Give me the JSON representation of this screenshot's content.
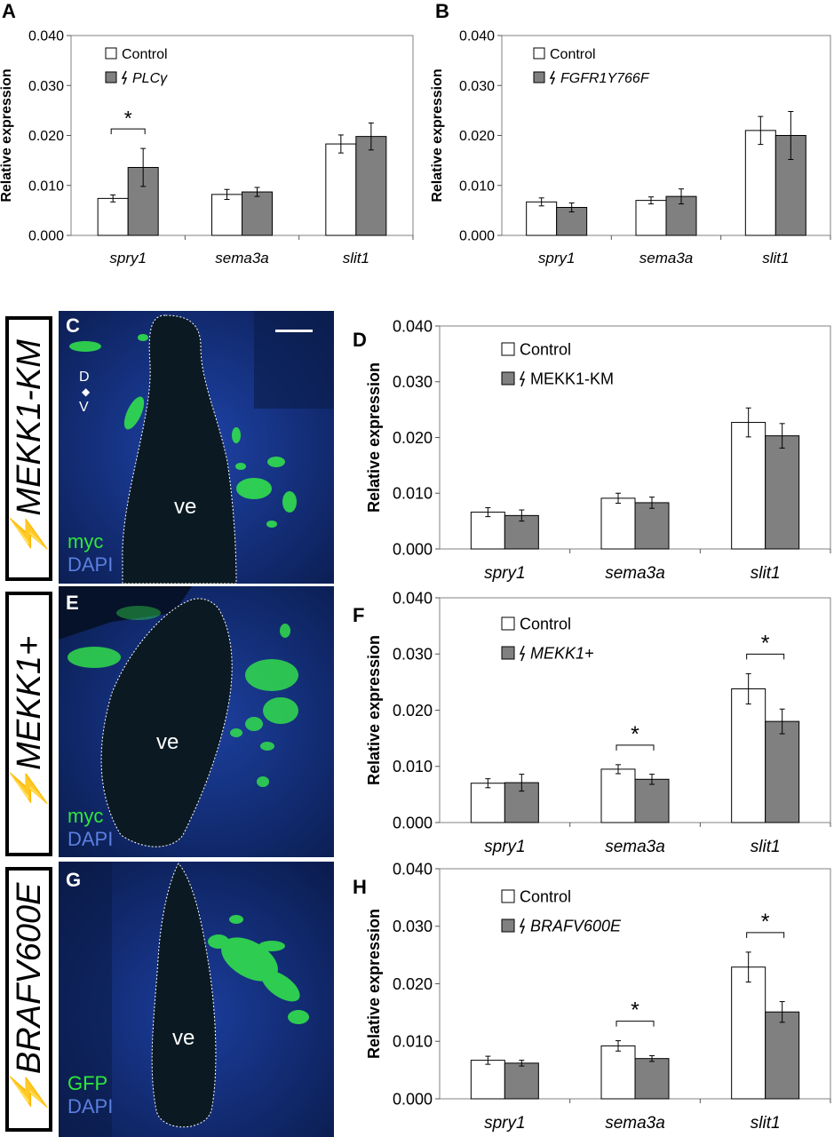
{
  "panel_letters": {
    "A": "A",
    "B": "B",
    "C": "C",
    "D": "D",
    "E": "E",
    "F": "F",
    "G": "G",
    "H": "H"
  },
  "side_labels": {
    "C": "MEKK1-KM",
    "E": "MEKK1+",
    "G": "BRAFV600E"
  },
  "micrographs": {
    "C": {
      "lumen": "ve",
      "stain1": "myc",
      "stain2": "DAPI",
      "axis_top": "D",
      "axis_bottom": "V"
    },
    "E": {
      "lumen": "ve",
      "stain1": "myc",
      "stain2": "DAPI"
    },
    "G": {
      "lumen": "ve",
      "stain1": "GFP",
      "stain2": "DAPI"
    }
  },
  "colors": {
    "control_fill": "#ffffff",
    "treated_fill": "#808080",
    "bar_stroke": "#000000",
    "frame": "#808080",
    "gfp_green": "#2ee83a",
    "dapi_blue": "#1a3f9e",
    "dapi_text": "#5b7fe0",
    "lumen": "#0b1a22"
  },
  "chart_data": [
    {
      "id": "A",
      "type": "bar",
      "ylabel": "Relative expression",
      "ylim": [
        0,
        0.04
      ],
      "yticks": [
        "0.000",
        "0.010",
        "0.020",
        "0.030",
        "0.040"
      ],
      "categories": [
        "spry1",
        "sema3a",
        "slit1"
      ],
      "series": [
        {
          "name": "Control",
          "values": [
            0.0074,
            0.0082,
            0.0183
          ],
          "errors": [
            0.0007,
            0.001,
            0.0018
          ]
        },
        {
          "name": "PLCγ",
          "values": [
            0.0136,
            0.0087,
            0.0198
          ],
          "errors": [
            0.0038,
            0.0009,
            0.0027
          ]
        }
      ],
      "significance": [
        {
          "category_index": 0,
          "label": "*"
        }
      ]
    },
    {
      "id": "B",
      "type": "bar",
      "ylabel": "Relative expression",
      "ylim": [
        0,
        0.04
      ],
      "yticks": [
        "0.000",
        "0.010",
        "0.020",
        "0.030",
        "0.040"
      ],
      "categories": [
        "spry1",
        "sema3a",
        "slit1"
      ],
      "series": [
        {
          "name": "Control",
          "values": [
            0.0067,
            0.007,
            0.021
          ],
          "errors": [
            0.0008,
            0.0007,
            0.0028
          ]
        },
        {
          "name": "FGFR1Y766F",
          "values": [
            0.0056,
            0.0078,
            0.02
          ],
          "errors": [
            0.0009,
            0.0015,
            0.0048
          ]
        }
      ],
      "significance": []
    },
    {
      "id": "D",
      "type": "bar",
      "ylabel": "Relative expression",
      "ylim": [
        0,
        0.04
      ],
      "yticks": [
        "0.000",
        "0.010",
        "0.020",
        "0.030",
        "0.040"
      ],
      "categories": [
        "spry1",
        "sema3a",
        "slit1"
      ],
      "series": [
        {
          "name": "Control",
          "values": [
            0.0066,
            0.0091,
            0.0227
          ],
          "errors": [
            0.0008,
            0.0009,
            0.0026
          ]
        },
        {
          "name": "MEKK1-KM",
          "values": [
            0.006,
            0.0083,
            0.0203
          ],
          "errors": [
            0.001,
            0.001,
            0.0022
          ]
        }
      ],
      "significance": []
    },
    {
      "id": "F",
      "type": "bar",
      "ylabel": "Relative expression",
      "ylim": [
        0,
        0.04
      ],
      "yticks": [
        "0.000",
        "0.010",
        "0.020",
        "0.030",
        "0.040"
      ],
      "categories": [
        "spry1",
        "sema3a",
        "slit1"
      ],
      "series": [
        {
          "name": "Control",
          "values": [
            0.007,
            0.0095,
            0.0238
          ],
          "errors": [
            0.0008,
            0.0008,
            0.0027
          ]
        },
        {
          "name": "MEKK1+",
          "values": [
            0.0071,
            0.0077,
            0.018
          ],
          "errors": [
            0.0015,
            0.0009,
            0.0022
          ]
        }
      ],
      "significance": [
        {
          "category_index": 1,
          "label": "*"
        },
        {
          "category_index": 2,
          "label": "*"
        }
      ]
    },
    {
      "id": "H",
      "type": "bar",
      "ylabel": "Relative expression",
      "ylim": [
        0,
        0.04
      ],
      "yticks": [
        "0.000",
        "0.010",
        "0.020",
        "0.030",
        "0.040"
      ],
      "categories": [
        "spry1",
        "sema3a",
        "slit1"
      ],
      "series": [
        {
          "name": "Control",
          "values": [
            0.0067,
            0.0092,
            0.0229
          ],
          "errors": [
            0.0007,
            0.0009,
            0.0026
          ]
        },
        {
          "name": "BRAFV600E",
          "values": [
            0.0062,
            0.007,
            0.0151
          ],
          "errors": [
            0.0005,
            0.0005,
            0.0018
          ]
        }
      ],
      "significance": [
        {
          "category_index": 1,
          "label": "*"
        },
        {
          "category_index": 2,
          "label": "*"
        }
      ]
    }
  ]
}
